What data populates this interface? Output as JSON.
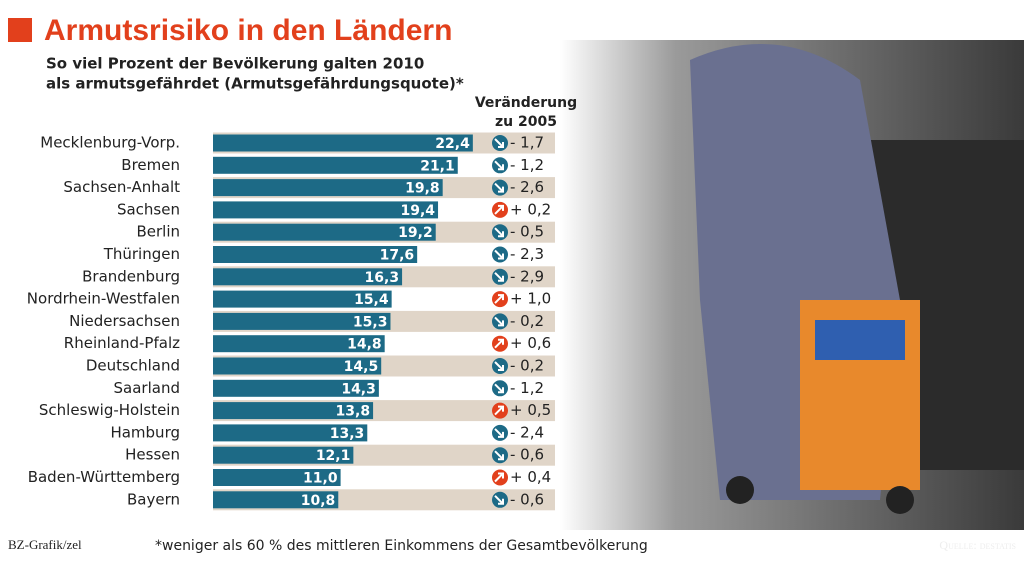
{
  "chart_data": {
    "type": "bar",
    "title": "Armutsrisiko in den Ländern",
    "subtitle": [
      "So viel Prozent der Bevölkerung galten 2010",
      "als armutsgefährdet (Armutsgefährdungsquote)*"
    ],
    "categories": [
      "Mecklenburg-Vorp.",
      "Bremen",
      "Sachsen-Anhalt",
      "Sachsen",
      "Berlin",
      "Thüringen",
      "Brandenburg",
      "Nordrhein-Westfalen",
      "Niedersachsen",
      "Rheinland-Pfalz",
      "Deutschland",
      "Saarland",
      "Schleswig-Holstein",
      "Hamburg",
      "Hessen",
      "Baden-Württemberg",
      "Bayern"
    ],
    "values": [
      22.4,
      21.1,
      19.8,
      19.4,
      19.2,
      17.6,
      16.3,
      15.4,
      15.3,
      14.8,
      14.5,
      14.3,
      13.8,
      13.3,
      12.1,
      11.0,
      10.8
    ],
    "value_labels": [
      "22,4",
      "21,1",
      "19,8",
      "19,4",
      "19,2",
      "17,6",
      "16,3",
      "15,4",
      "15,3",
      "14,8",
      "14,5",
      "14,3",
      "13,8",
      "13,3",
      "12,1",
      "11,0",
      "10,8"
    ],
    "color": "#1d6a86",
    "change": {
      "title": "Veränderung zu 2005",
      "values": [
        -1.7,
        -1.2,
        -2.6,
        0.2,
        -0.5,
        -2.3,
        -2.9,
        1.0,
        -0.2,
        0.6,
        -0.2,
        -1.2,
        0.5,
        -2.4,
        -0.6,
        0.4,
        -0.6
      ],
      "value_labels": [
        "- 1,7",
        "- 1,2",
        "- 2,6",
        "+ 0,2",
        "- 0,5",
        "- 2,3",
        "- 2,9",
        "+ 1,0",
        "- 0,2",
        "+ 0,6",
        "- 0,2",
        "- 1,2",
        "+ 0,5",
        "- 2,4",
        "- 0,6",
        "+ 0,4",
        "- 0,6"
      ],
      "down_color": "#1d6a86",
      "up_color": "#e2401c"
    },
    "footnote": "*weniger als 60 % des mittleren Einkommens der Gesamtbevölkerung",
    "credit": "BZ-Grafik/zel",
    "source": "Quelle: destatis"
  }
}
